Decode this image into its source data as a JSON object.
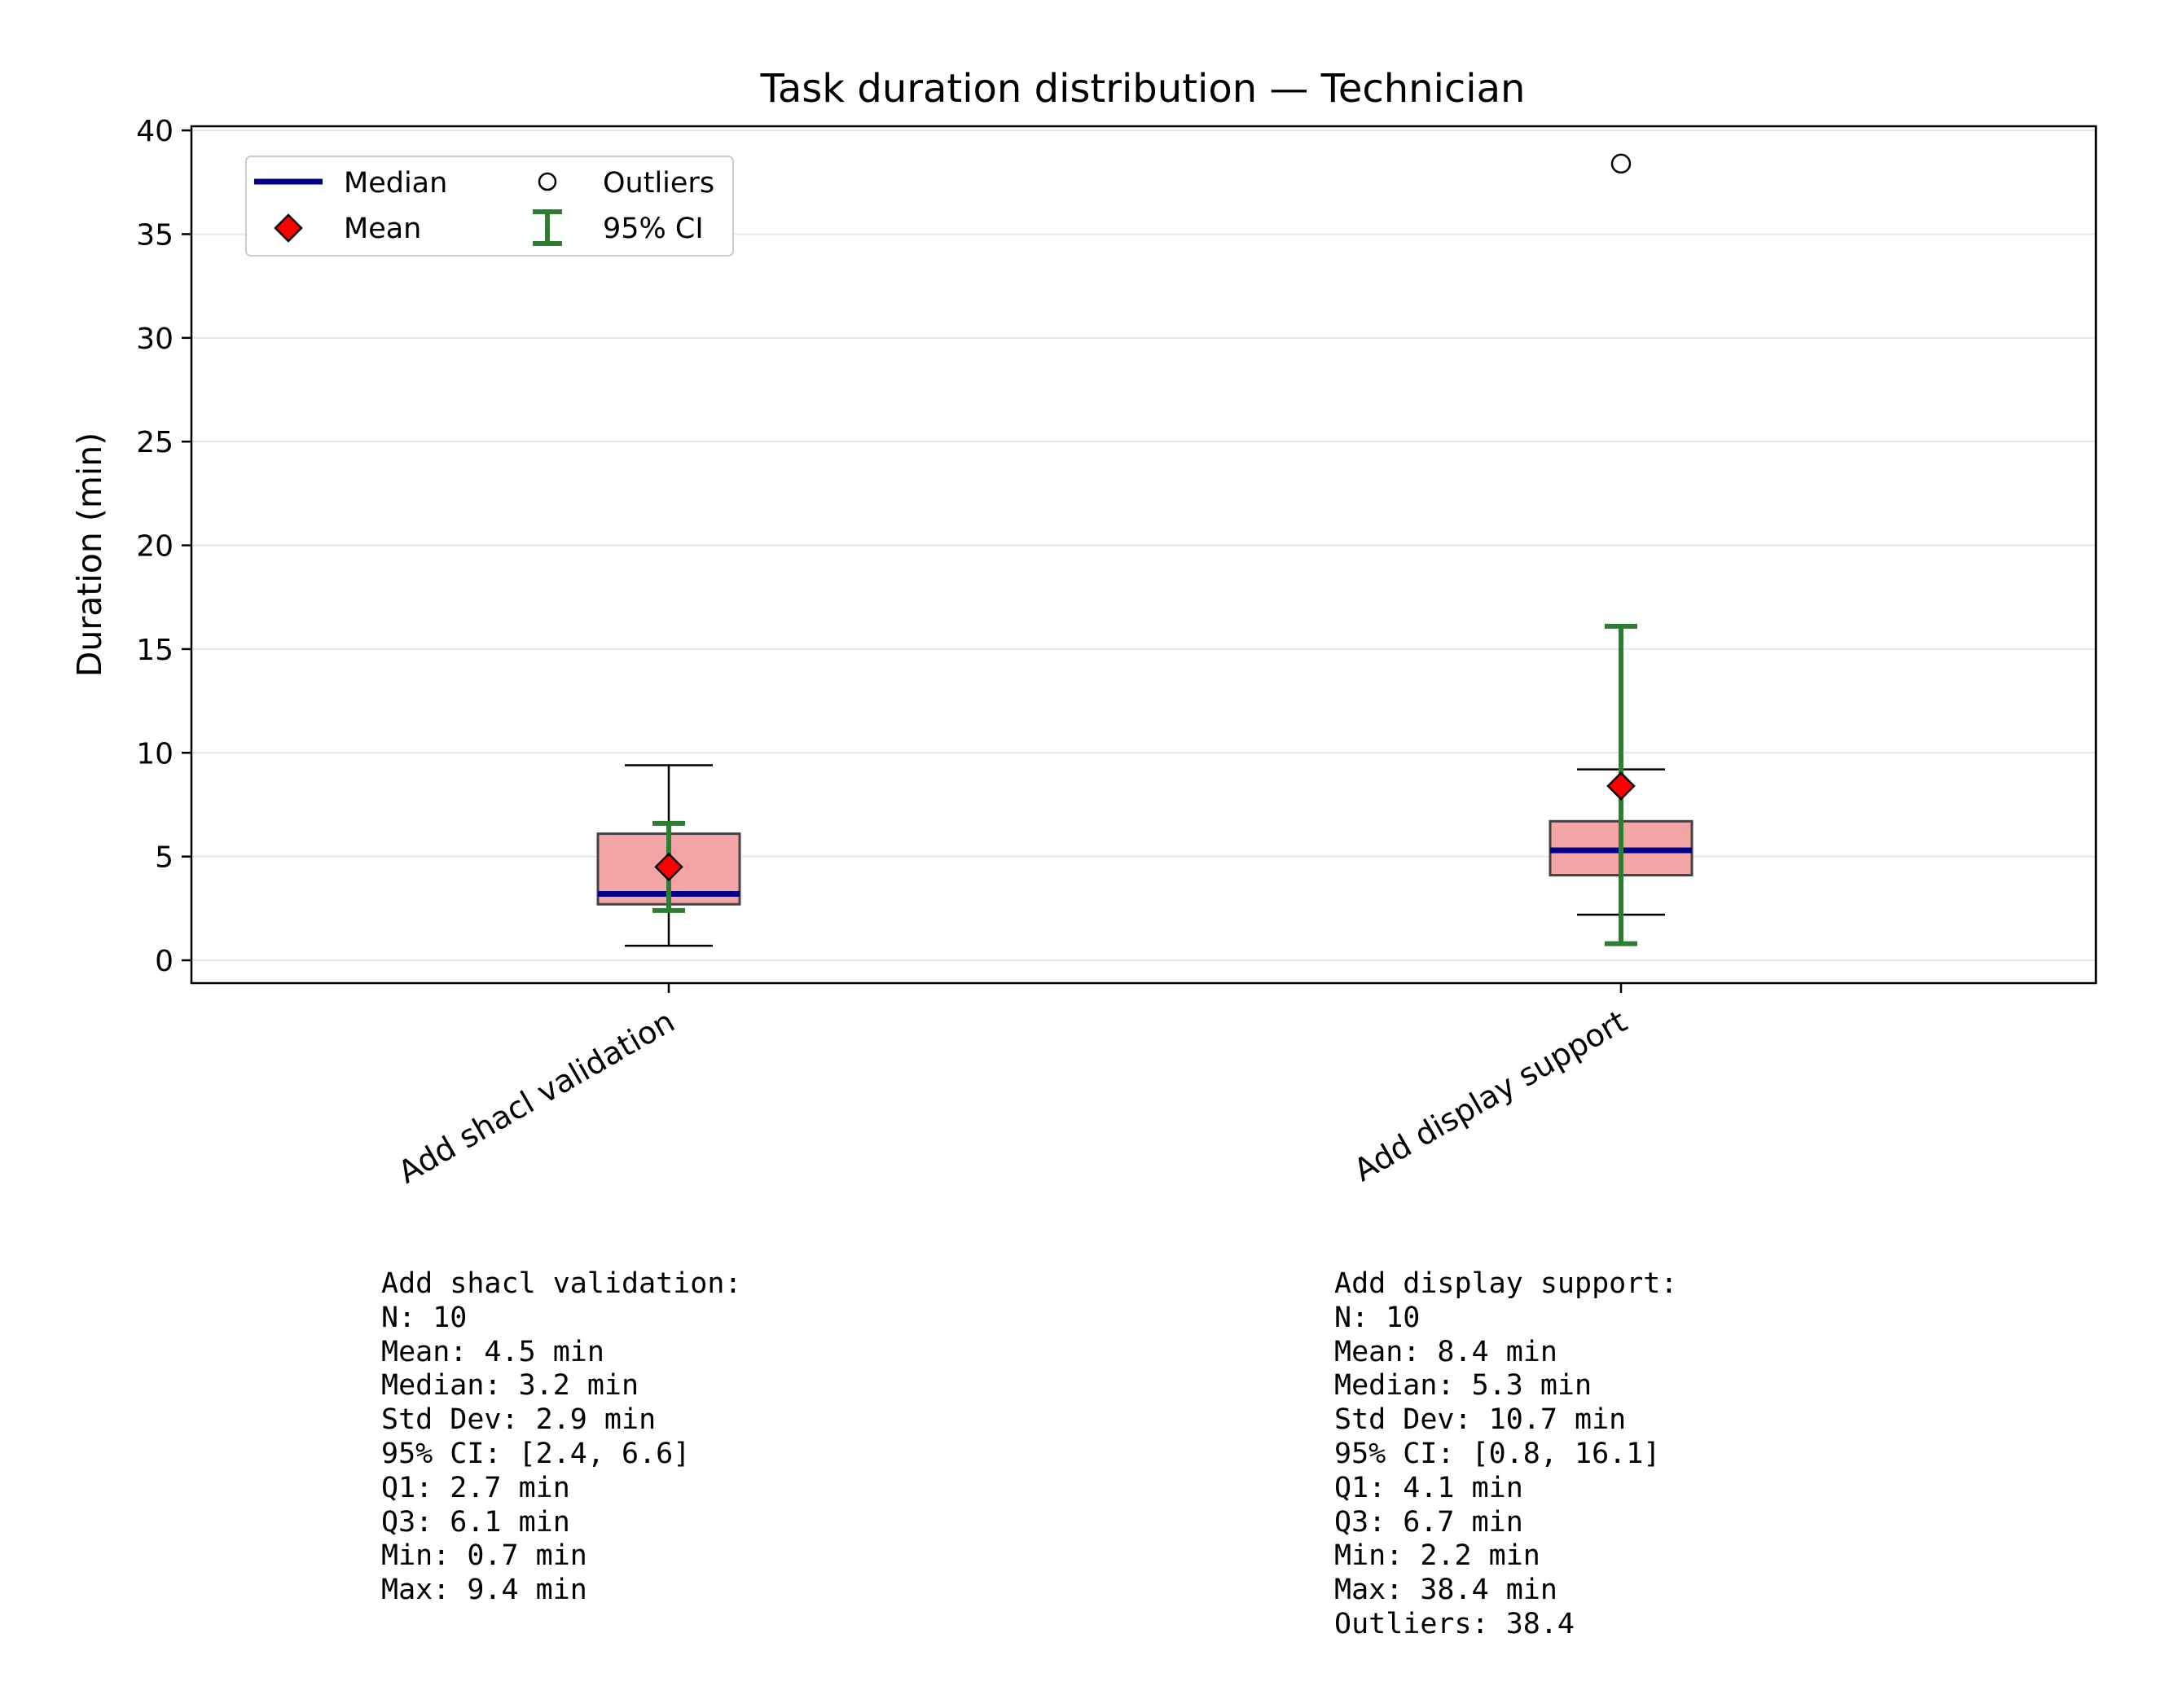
{
  "chart_data": {
    "type": "box",
    "title": "Task duration distribution — Technician",
    "xlabel": "",
    "ylabel": "Duration (min)",
    "ylim": [
      -1.1,
      40.2
    ],
    "yticks": [
      0,
      5,
      10,
      15,
      20,
      25,
      30,
      35,
      40
    ],
    "grid": "horizontal",
    "legend_placement": "top-left",
    "legend": [
      "Median",
      "Outliers",
      "Mean",
      "95% CI"
    ],
    "categories": [
      "Add shacl validation",
      "Add display support"
    ],
    "boxes": [
      {
        "name": "Add shacl validation",
        "n": 10,
        "mean": 4.5,
        "median": 3.2,
        "std": 2.9,
        "ci": [
          2.4,
          6.6
        ],
        "q1": 2.7,
        "q3": 6.1,
        "whisker_low": 0.7,
        "whisker_high": 9.4,
        "min": 0.7,
        "max": 9.4,
        "outliers": []
      },
      {
        "name": "Add display support",
        "n": 10,
        "mean": 8.4,
        "median": 5.3,
        "std": 10.7,
        "ci": [
          0.8,
          16.1
        ],
        "q1": 4.1,
        "q3": 6.7,
        "whisker_low": 2.2,
        "whisker_high": 9.2,
        "min": 2.2,
        "max": 38.4,
        "outliers": [
          38.4
        ]
      }
    ],
    "colors": {
      "box_fill": "#f4a6a6",
      "box_edge": "#444444",
      "median": "#00008b",
      "mean_fill": "#ff0000",
      "ci": "#2e7d32",
      "grid": "#e6e6e6"
    }
  },
  "stats_text": [
    "Add shacl validation:\nN: 10\nMean: 4.5 min\nMedian: 3.2 min\nStd Dev: 2.9 min\n95% CI: [2.4, 6.6]\nQ1: 2.7 min\nQ3: 6.1 min\nMin: 0.7 min\nMax: 9.4 min",
    "Add display support:\nN: 10\nMean: 8.4 min\nMedian: 5.3 min\nStd Dev: 10.7 min\n95% CI: [0.8, 16.1]\nQ1: 4.1 min\nQ3: 6.7 min\nMin: 2.2 min\nMax: 38.4 min\nOutliers: 38.4"
  ]
}
